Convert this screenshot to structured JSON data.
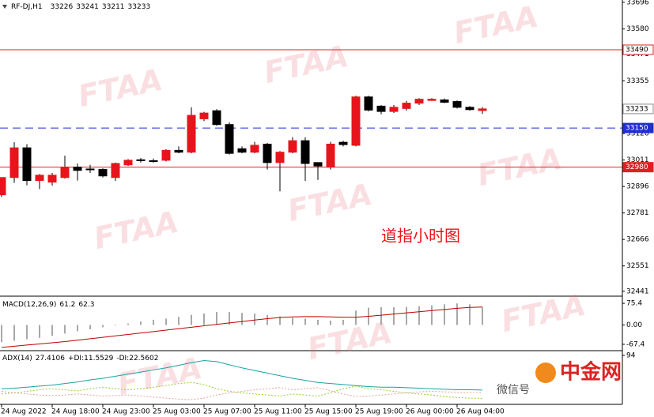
{
  "chart_data": [
    {
      "type": "candlestick",
      "title": "RF-DJ,H1",
      "categories": [
        "24 Aug 2022",
        null,
        null,
        null,
        "24 Aug 18:00",
        null,
        null,
        null,
        "24 Aug 23:00",
        null,
        null,
        null,
        "25 Aug 03:00",
        null,
        null,
        null,
        "25 Aug 07:00",
        null,
        null,
        null,
        "25 Aug 11:00",
        null,
        null,
        null,
        "25 Aug 15:00",
        null,
        null,
        null,
        "25 Aug 19:00",
        null,
        null,
        null,
        "26 Aug 00:00",
        null,
        null,
        null,
        "26 Aug 04:00",
        null,
        null
      ],
      "open": [
        32860,
        32935,
        33064,
        32922,
        32915,
        32935,
        32980,
        32972,
        32970,
        32935,
        32990,
        33012,
        33008,
        33010,
        33053,
        33045,
        33190,
        33225,
        33165,
        33060,
        33045,
        33080,
        33000,
        33045,
        33095,
        33000,
        32980,
        33088,
        33075,
        33285,
        33245,
        33222,
        33235,
        33258,
        33270,
        33272,
        33265,
        33240,
        33226
      ],
      "high": [
        32935,
        33088,
        33080,
        32950,
        32955,
        33030,
        32996,
        32990,
        32975,
        33000,
        33015,
        33020,
        33018,
        33058,
        33070,
        33240,
        33220,
        33232,
        33175,
        33070,
        33090,
        33085,
        33050,
        33110,
        33110,
        33000,
        33090,
        33095,
        33290,
        33290,
        33250,
        33250,
        33268,
        33280,
        33280,
        33278,
        33270,
        33245,
        33241
      ],
      "low": [
        32850,
        32912,
        32901,
        32885,
        32900,
        32930,
        32922,
        32955,
        32935,
        32920,
        32985,
        33000,
        33000,
        33005,
        33040,
        33040,
        33180,
        33160,
        33035,
        33040,
        33040,
        32970,
        32875,
        33040,
        32920,
        32925,
        32970,
        33070,
        33070,
        33222,
        33210,
        33215,
        33225,
        33250,
        33268,
        33258,
        33235,
        33225,
        33211
      ],
      "close": [
        32935,
        33064,
        32922,
        32945,
        32945,
        32980,
        32966,
        32970,
        32942,
        32996,
        33010,
        33008,
        33006,
        33053,
        33045,
        33205,
        33215,
        33165,
        33040,
        33045,
        33075,
        33000,
        33045,
        33095,
        32996,
        32985,
        33080,
        33078,
        33285,
        33228,
        33222,
        33240,
        33258,
        33275,
        33275,
        33262,
        33240,
        33230,
        33233
      ],
      "up_color": "#e8141b",
      "down_color": "#000000",
      "ylim": [
        32430,
        33706
      ],
      "yticks": [
        33696,
        33580,
        33471,
        33355,
        33126,
        33011,
        32896,
        32781,
        32666,
        32551,
        32441
      ],
      "levels": [
        {
          "value": 33490,
          "color": "#e02020",
          "style": "solid",
          "box": "outline"
        },
        {
          "value": 33150,
          "color": "#1f2fd0",
          "style": "dashed",
          "box": "fill"
        },
        {
          "value": 32980,
          "color": "#e02020",
          "style": "solid",
          "box": "fill"
        }
      ],
      "annotation": "道指小时图",
      "watermark": "FTAA",
      "logo": "中金网",
      "wechat": "微信号"
    },
    {
      "type": "macd",
      "title": "MACD(12,26,9)",
      "ylim": [
        -84,
        92
      ],
      "yticks": [
        75.4,
        {
          "value": 0,
          "label": "0.00"
        },
        -67.4
      ],
      "series": [
        {
          "kind": "bar",
          "color": "#a8a8a8",
          "values": [
            -60,
            -55,
            -50,
            -45,
            -38,
            -30,
            -22,
            -15,
            -8,
            -2,
            5,
            12,
            18,
            22,
            28,
            35,
            40,
            45,
            45,
            42,
            40,
            35,
            30,
            25,
            22,
            18,
            15,
            18,
            50,
            60,
            62,
            62,
            63,
            65,
            68,
            72,
            75,
            72,
            61.2
          ]
        },
        {
          "kind": "line",
          "color": "#c00000",
          "values": [
            -78,
            -74,
            -70,
            -66,
            -62,
            -58,
            -53,
            -48,
            -43,
            -38,
            -33,
            -28,
            -23,
            -18,
            -13,
            -8,
            -3,
            2,
            7,
            12,
            17,
            22,
            26,
            28,
            29,
            29,
            28,
            27,
            27,
            30,
            34,
            38,
            42,
            46,
            50,
            54,
            58,
            61,
            62.3
          ]
        }
      ]
    },
    {
      "type": "adx",
      "title": "ADX(14)",
      "ylim": [
        0,
        100
      ],
      "yticks": [
        94
      ],
      "series": [
        {
          "color": "#1aa3a3",
          "dash": "none",
          "values": [
            30,
            31,
            33,
            35,
            37,
            40,
            43,
            47,
            50,
            54,
            58,
            62,
            66,
            70,
            75,
            80,
            84,
            82,
            76,
            70,
            65,
            60,
            55,
            50,
            46,
            42,
            40,
            38,
            36,
            34,
            33,
            33,
            32,
            31,
            30,
            29,
            28,
            28,
            27.4106
          ]
        },
        {
          "name": "+DI:",
          "color": "#9acd32",
          "dash": "2,2",
          "values": [
            20,
            22,
            25,
            28,
            30,
            28,
            26,
            30,
            33,
            30,
            28,
            30,
            33,
            36,
            40,
            42,
            38,
            30,
            25,
            22,
            20,
            18,
            16,
            20,
            18,
            16,
            22,
            30,
            35,
            30,
            28,
            25,
            22,
            20,
            18,
            15,
            13,
            12,
            11.5529
          ]
        },
        {
          "name": "-DI:",
          "color": "#e9a0a0",
          "dash": "2,2",
          "values": [
            25,
            22,
            20,
            18,
            17,
            18,
            20,
            18,
            16,
            17,
            18,
            16,
            14,
            12,
            10,
            9,
            12,
            18,
            22,
            25,
            28,
            30,
            32,
            28,
            30,
            32,
            26,
            20,
            15,
            16,
            18,
            20,
            22,
            24,
            25,
            24,
            23,
            23,
            22.5602
          ]
        }
      ]
    }
  ]
}
